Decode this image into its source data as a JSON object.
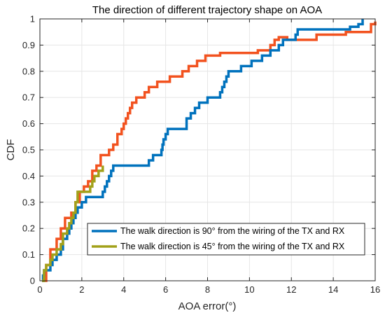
{
  "chart_data": {
    "type": "line",
    "title": "The direction of different trajectory shape on AOA",
    "xlabel": "AOA error(°)",
    "ylabel": "CDF",
    "xlim": [
      0,
      16
    ],
    "ylim": [
      0,
      1
    ],
    "grid": true,
    "legend_position": "bottom-right",
    "x_ticks": [
      "0",
      "2",
      "4",
      "6",
      "8",
      "10",
      "12",
      "14",
      "16"
    ],
    "y_ticks": [
      "0",
      "0.1",
      "0.2",
      "0.3",
      "0.4",
      "0.5",
      "0.6",
      "0.7",
      "0.8",
      "0.9",
      "1"
    ],
    "series": [
      {
        "name": "The walk direction is 90° from the wiring of the TX and RX",
        "color": "#0072BD",
        "x": [
          0.1,
          0.15,
          0.2,
          0.3,
          0.5,
          0.6,
          0.8,
          1.0,
          1.1,
          1.3,
          1.4,
          1.5,
          1.6,
          1.7,
          1.8,
          2.0,
          2.2,
          2.6,
          3.0,
          3.1,
          3.2,
          3.3,
          3.4,
          3.5,
          3.6,
          4.0,
          5.2,
          5.4,
          5.8,
          5.85,
          5.9,
          6.0,
          6.1,
          6.3,
          7.0,
          7.2,
          7.4,
          7.6,
          7.7,
          8.0,
          8.6,
          8.7,
          8.8,
          8.9,
          9.0,
          9.6,
          10.0,
          10.1,
          10.6,
          11.0,
          11.4,
          11.6,
          12.2,
          12.3,
          13.5,
          14.2,
          14.8,
          15.2,
          15.4
        ],
        "y": [
          0.0,
          0.02,
          0.04,
          0.04,
          0.06,
          0.08,
          0.1,
          0.12,
          0.16,
          0.18,
          0.2,
          0.22,
          0.24,
          0.26,
          0.28,
          0.3,
          0.32,
          0.32,
          0.34,
          0.36,
          0.38,
          0.4,
          0.42,
          0.44,
          0.44,
          0.44,
          0.46,
          0.48,
          0.5,
          0.52,
          0.54,
          0.56,
          0.58,
          0.58,
          0.62,
          0.64,
          0.66,
          0.68,
          0.68,
          0.7,
          0.72,
          0.74,
          0.76,
          0.78,
          0.8,
          0.82,
          0.82,
          0.84,
          0.86,
          0.88,
          0.9,
          0.92,
          0.94,
          0.96,
          0.96,
          0.96,
          0.97,
          0.98,
          1.0
        ]
      },
      {
        "name": "The walk direction is 45° from the wiring of the TX and RX",
        "color": "#A2A11A",
        "x": [
          0.1,
          0.2,
          0.3,
          0.5,
          0.6,
          0.8,
          1.0,
          1.1,
          1.3,
          1.4,
          1.5,
          1.6,
          1.7,
          1.8,
          2.1,
          2.2,
          2.4,
          2.5,
          2.6,
          2.8,
          3.0
        ],
        "y": [
          0.0,
          0.04,
          0.06,
          0.08,
          0.1,
          0.12,
          0.14,
          0.18,
          0.2,
          0.22,
          0.24,
          0.26,
          0.3,
          0.34,
          0.34,
          0.34,
          0.36,
          0.38,
          0.4,
          0.42,
          0.44
        ]
      },
      {
        "name": "",
        "color": "#F2521F",
        "x": [
          0.1,
          0.3,
          0.5,
          0.8,
          1.0,
          1.2,
          1.5,
          1.7,
          1.9,
          2.1,
          2.3,
          2.5,
          2.7,
          2.9,
          3.3,
          3.5,
          3.7,
          3.9,
          4.0,
          4.1,
          4.2,
          4.3,
          4.4,
          4.6,
          4.8,
          5.0,
          5.2,
          5.6,
          6.2,
          6.8,
          7.1,
          7.5,
          7.9,
          8.2,
          8.6,
          9.2,
          9.8,
          10.4,
          10.9,
          11.0,
          11.2,
          11.4,
          11.6,
          11.8,
          12.4,
          13.2,
          14.0,
          14.6,
          15.8,
          16.0
        ],
        "y": [
          0.0,
          0.06,
          0.12,
          0.16,
          0.2,
          0.24,
          0.26,
          0.3,
          0.34,
          0.36,
          0.38,
          0.42,
          0.44,
          0.48,
          0.5,
          0.52,
          0.56,
          0.58,
          0.6,
          0.62,
          0.64,
          0.66,
          0.68,
          0.7,
          0.7,
          0.72,
          0.74,
          0.76,
          0.78,
          0.8,
          0.82,
          0.84,
          0.86,
          0.86,
          0.87,
          0.87,
          0.87,
          0.88,
          0.88,
          0.9,
          0.92,
          0.93,
          0.93,
          0.92,
          0.92,
          0.94,
          0.94,
          0.95,
          0.98,
          0.99
        ]
      }
    ]
  }
}
